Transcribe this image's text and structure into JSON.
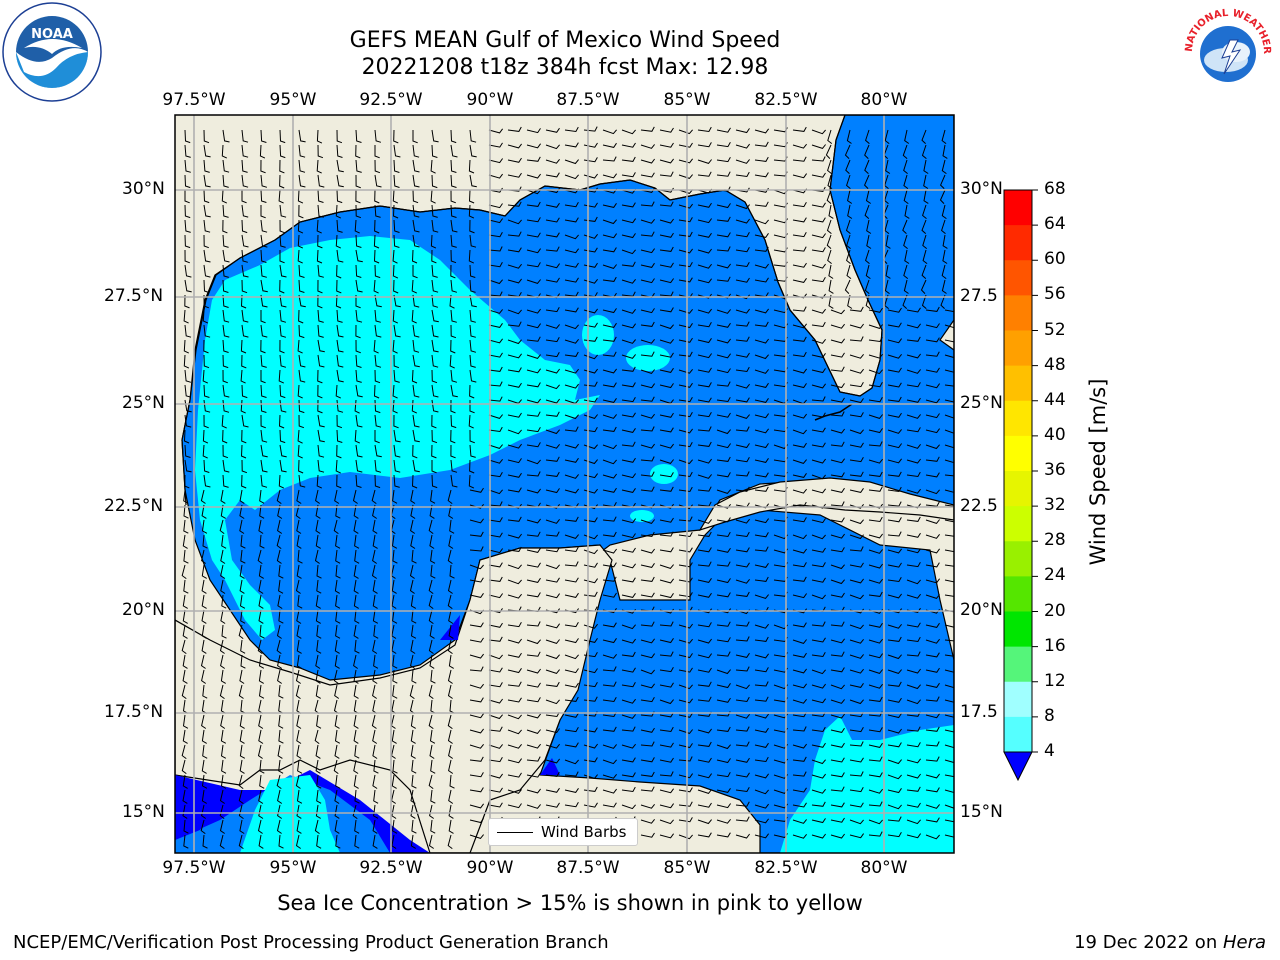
{
  "title": {
    "line1": "GEFS MEAN Gulf of Mexico Wind Speed",
    "line2": "20221208 t18z 384h fcst   Max: 12.98"
  },
  "axes": {
    "lon_ticks": [
      "97.5°W",
      "95°W",
      "92.5°W",
      "90°W",
      "87.5°W",
      "85°W",
      "82.5°W",
      "80°W"
    ],
    "lat_ticks_left": [
      "30°N",
      "27.5°N",
      "25°N",
      "22.5°N",
      "20°N",
      "17.5°N",
      "15°N"
    ],
    "lat_ticks_right": [
      "30°N",
      "27.5",
      "25°N",
      "22.5",
      "20°N",
      "17.5",
      "15°N"
    ]
  },
  "legend": {
    "label": "Wind Barbs"
  },
  "colorbar": {
    "label": "Wind Speed [m/s]",
    "ticks": [
      "68",
      "64",
      "60",
      "56",
      "52",
      "48",
      "44",
      "40",
      "36",
      "32",
      "28",
      "24",
      "20",
      "16",
      "12",
      "8",
      "4"
    ],
    "colors": [
      "#ff0000",
      "#ff2a00",
      "#ff5500",
      "#ff8000",
      "#ffa000",
      "#ffc000",
      "#ffe600",
      "#ffff00",
      "#e6f500",
      "#ccff00",
      "#99f000",
      "#55e600",
      "#00e600",
      "#55f57a",
      "#a0ffff",
      "#55ffff",
      "#00ffff",
      "#0080ff"
    ],
    "extend_color": "#0000ff"
  },
  "note": "Sea Ice Concentration > 15% is shown in pink to yellow",
  "footer": {
    "left": "NCEP/EMC/Verification Post Processing Product Generation Branch",
    "right_date": "19 Dec 2022 on ",
    "right_host": "Hera"
  },
  "logos": {
    "noaa_text": "NOAA",
    "noaa_ring": "NATIONAL OCEANIC AND ATMOSPHERIC ADMINISTRATION · U.S. DEPARTMENT OF COMMERCE",
    "nws_ring": "NATIONAL WEATHER SERVICE"
  },
  "map": {
    "land_color": "#efedde",
    "sea_color": "#0080ff",
    "high_wind_color": "#00ffff",
    "low_wind_color": "#0000ff"
  }
}
